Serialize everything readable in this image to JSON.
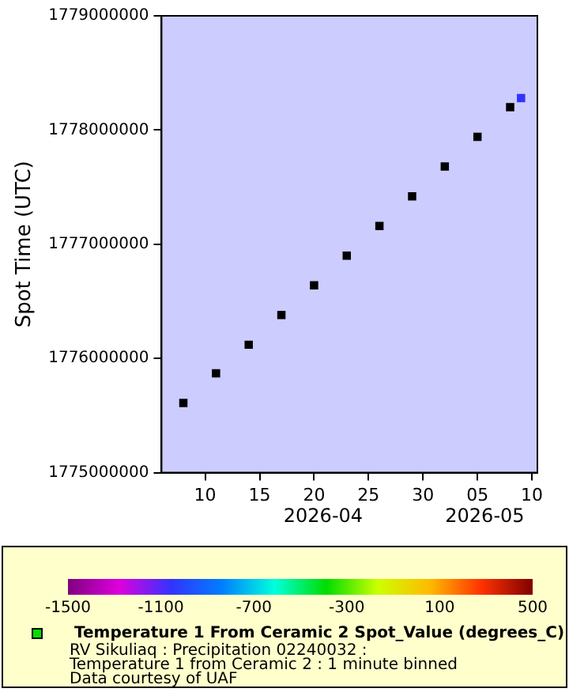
{
  "chart_data": {
    "type": "scatter",
    "ylabel": "Spot Time (UTC)",
    "x": [
      "2026-04-08",
      "2026-04-11",
      "2026-04-14",
      "2026-04-17",
      "2026-04-20",
      "2026-04-23",
      "2026-04-26",
      "2026-04-29",
      "2026-05-02",
      "2026-05-05",
      "2026-05-08",
      "2026-05-09"
    ],
    "series": [
      {
        "name": "Temperature 1 From Ceramic 2 Spot_Value (degrees_C)",
        "color": "#00dd00",
        "colors": [
          "#000000",
          "#000000",
          "#000000",
          "#000000",
          "#000000",
          "#000000",
          "#000000",
          "#000000",
          "#000000",
          "#000000",
          "#000000",
          "#3333ff"
        ],
        "values": [
          1775610000,
          1775870000,
          1776120000,
          1776380000,
          1776640000,
          1776900000,
          1777160000,
          1777420000,
          1777680000,
          1777940000,
          1778200000,
          1778280000
        ]
      }
    ],
    "xlim": [
      "2026-04-06",
      "2026-05-10T12:00"
    ],
    "xticks": [
      {
        "value": "2026-04-10",
        "label": "10"
      },
      {
        "value": "2026-04-15",
        "label": "15"
      },
      {
        "value": "2026-04-20",
        "label": "20"
      },
      {
        "value": "2026-04-25",
        "label": "25"
      },
      {
        "value": "2026-04-30",
        "label": "30"
      },
      {
        "value": "2026-05-05",
        "label": "05"
      },
      {
        "value": "2026-05-10",
        "label": "10"
      }
    ],
    "ylim": [
      1775000000,
      1779000000
    ],
    "yticks": [
      1775000000,
      1776000000,
      1777000000,
      1778000000,
      1779000000
    ],
    "clim": [
      -1500,
      500
    ],
    "cticks": [
      -1500,
      -1100,
      -700,
      -300,
      100,
      500
    ],
    "grid": false,
    "marker": "square",
    "legend": "bottom",
    "annotations": [
      "2026-04",
      "2026-05",
      "RV Sikuliaq : Precipitation 02240032 :",
      "Temperature 1 from Ceramic 2 : 1 minute binned",
      "Data courtesy of UAF"
    ]
  }
}
